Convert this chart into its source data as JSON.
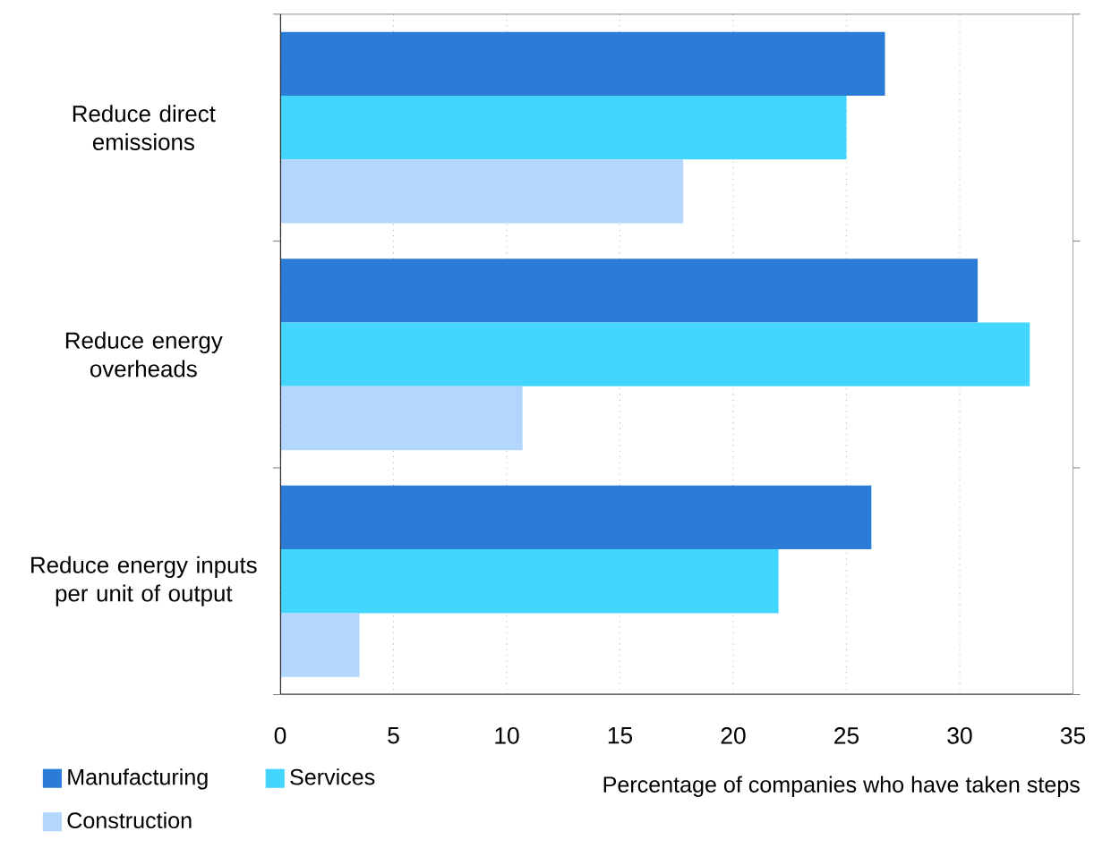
{
  "chart_data": {
    "type": "bar",
    "orientation": "horizontal",
    "xlabel": "Percentage of companies who have taken steps",
    "categories": [
      "Reduce direct emissions",
      "Reduce energy overheads",
      "Reduce energy inputs per unit of output"
    ],
    "series": [
      {
        "name": "Manufacturing",
        "color": "#2a7cd6",
        "values": [
          26.7,
          30.8,
          26.1
        ]
      },
      {
        "name": "Services",
        "color": "#42d6fe",
        "values": [
          25.0,
          33.1,
          22.0
        ]
      },
      {
        "name": "Construction",
        "color": "#b2d6fe",
        "values": [
          17.8,
          10.7,
          3.5
        ]
      }
    ],
    "xlim": [
      0,
      35
    ],
    "xticks": [
      0,
      5,
      10,
      15,
      20,
      25,
      30,
      35
    ],
    "grid": "x",
    "legend": "bottom"
  }
}
